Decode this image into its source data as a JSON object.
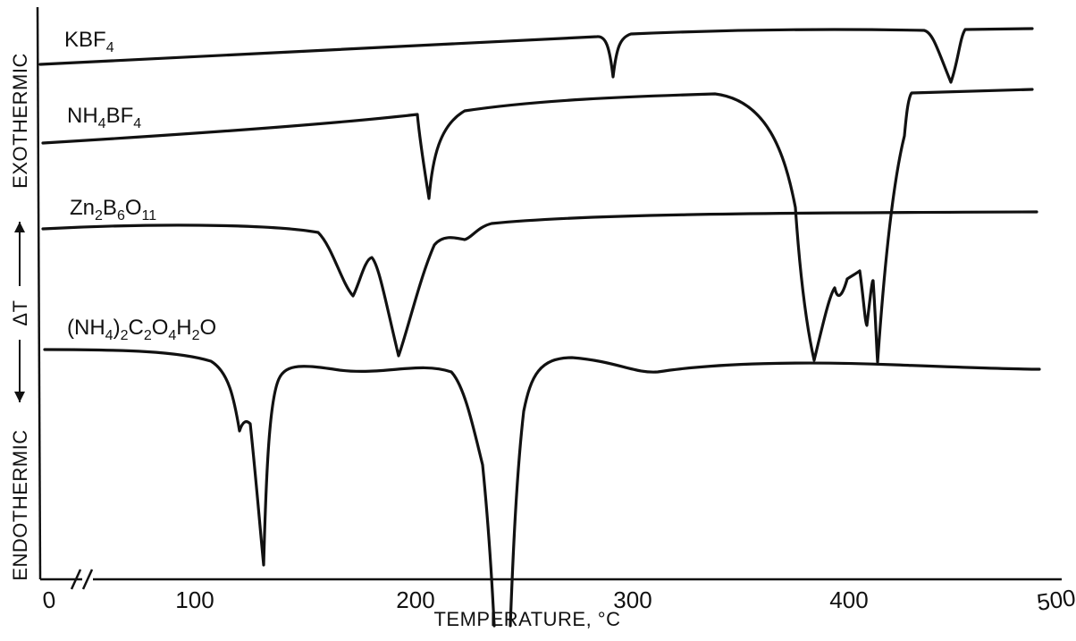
{
  "chart_data": {
    "type": "line",
    "title": "",
    "xlabel": "TEMPERATURE, °C",
    "ylabel": {
      "top": "EXOTHERMIC",
      "middle": "ΔT",
      "bottom": "ENDOTHERMIC"
    },
    "x_ticks": [
      "0",
      "100",
      "200",
      "300",
      "400",
      "500"
    ],
    "x_tick_values": [
      0,
      100,
      200,
      300,
      400,
      500
    ],
    "xlim": [
      0,
      500
    ],
    "axis_break": true,
    "grid": false,
    "series": [
      {
        "name": "KBF4",
        "label_parts": [
          [
            "KBF",
            ""
          ],
          [
            "4",
            "sub"
          ]
        ],
        "events": [
          {
            "type": "endotherm",
            "temperature": 290
          },
          {
            "type": "endotherm",
            "temperature": 447
          }
        ]
      },
      {
        "name": "NH4BF4",
        "label_parts": [
          [
            "NH",
            ""
          ],
          [
            "4",
            "sub"
          ],
          [
            "BF",
            ""
          ],
          [
            "4",
            "sub"
          ]
        ],
        "events": [
          {
            "type": "endotherm",
            "temperature": 205
          },
          {
            "type": "endotherm",
            "temperature": 385
          },
          {
            "type": "endotherm",
            "temperature": 415
          }
        ]
      },
      {
        "name": "Zn2B6O11",
        "label_parts": [
          [
            "Zn",
            ""
          ],
          [
            "2",
            "sub"
          ],
          [
            "B",
            ""
          ],
          [
            "6",
            "sub"
          ],
          [
            "O",
            ""
          ],
          [
            "11",
            "sub"
          ]
        ],
        "events": [
          {
            "type": "endotherm",
            "temperature": 170
          },
          {
            "type": "endotherm",
            "temperature": 190
          },
          {
            "type": "endotherm",
            "temperature": 223
          }
        ]
      },
      {
        "name": "(NH4)2C2O4H2O",
        "label_parts": [
          [
            "(NH",
            ""
          ],
          [
            "4",
            "sub"
          ],
          [
            ")",
            ""
          ],
          [
            "2",
            "sub"
          ],
          [
            "C",
            ""
          ],
          [
            "2",
            "sub"
          ],
          [
            "O",
            ""
          ],
          [
            "4",
            "sub"
          ],
          [
            "H",
            ""
          ],
          [
            "2",
            "sub"
          ],
          [
            "O",
            ""
          ]
        ],
        "events": [
          {
            "type": "endotherm",
            "temperature": 128
          },
          {
            "type": "endotherm",
            "temperature": 238
          },
          {
            "type": "endotherm",
            "temperature": 310
          }
        ]
      }
    ]
  }
}
